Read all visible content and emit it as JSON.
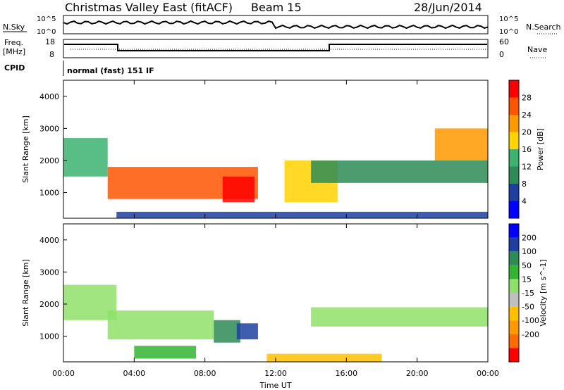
{
  "header": {
    "title": "Christmas Valley East (fitACF)",
    "beam": "Beam 15",
    "date": "28/Jun/2014"
  },
  "panels": {
    "nsky": {
      "left_label": "N.Sky",
      "left_ticks": [
        "10^5",
        "10^0"
      ],
      "right_ticks": [
        "10^5",
        "10^0"
      ],
      "right_label": "N.Search"
    },
    "freq": {
      "left_label_1": "Freq.",
      "left_label_2": "[MHz]",
      "left_ticks": [
        "18",
        "8"
      ],
      "right_ticks": [
        "60",
        "0"
      ],
      "right_label": "Nave"
    },
    "cpid": {
      "label": "CPID",
      "mode": "normal (fast) 151 IF"
    }
  },
  "colors": {
    "power": [
      "#0000ff",
      "#1f3fa0",
      "#2e8b57",
      "#3cb371",
      "#ffd200",
      "#ff9900",
      "#ff5500",
      "#ff0000"
    ],
    "velocity": [
      "#ff0000",
      "#ff6a00",
      "#ff9900",
      "#ffc000",
      "#c0c0c0",
      "#8fe06a",
      "#33b533",
      "#2e8b57",
      "#1f3fa0",
      "#0000ff"
    ]
  },
  "chart_data": [
    {
      "type": "heatmap",
      "name": "power",
      "ylabel": "Slant Range [km]",
      "yticks": [
        "1000",
        "2000",
        "3000",
        "4000"
      ],
      "ylim": [
        200,
        4500
      ],
      "colorbar_label": "Power [dB]",
      "colorbar_ticks": [
        "4",
        "8",
        "12",
        "16",
        "20",
        "24",
        "28"
      ],
      "colorbar_range": [
        0,
        32
      ],
      "features": [
        {
          "t0": 0.0,
          "t1": 2.5,
          "r0": 1500,
          "r1": 2700,
          "value": 14
        },
        {
          "t0": 2.5,
          "t1": 11.0,
          "r0": 800,
          "r1": 1800,
          "value": 24
        },
        {
          "t0": 9.0,
          "t1": 10.8,
          "r0": 700,
          "r1": 1500,
          "value": 30
        },
        {
          "t0": 12.5,
          "t1": 15.5,
          "r0": 700,
          "r1": 2000,
          "value": 16
        },
        {
          "t0": 14.0,
          "t1": 24.0,
          "r0": 1300,
          "r1": 2000,
          "value": 8
        },
        {
          "t0": 21.0,
          "t1": 24.0,
          "r0": 2000,
          "r1": 3000,
          "value": 20
        },
        {
          "t0": 3.0,
          "t1": 24.0,
          "r0": 200,
          "r1": 400,
          "value": 6
        }
      ]
    },
    {
      "type": "heatmap",
      "name": "velocity",
      "ylabel": "Slant Range [km]",
      "yticks": [
        "1000",
        "2000",
        "3000",
        "4000"
      ],
      "ylim": [
        200,
        4500
      ],
      "colorbar_label": "Velocity [m s^-1]",
      "colorbar_ticks": [
        "200",
        "100",
        "50",
        "15",
        "-15",
        "-50",
        "-100",
        "-200"
      ],
      "features": [
        {
          "t0": 0.0,
          "t1": 3.0,
          "r0": 1500,
          "r1": 2600,
          "value": 0
        },
        {
          "t0": 2.5,
          "t1": 8.5,
          "r0": 900,
          "r1": 1800,
          "value": 0
        },
        {
          "t0": 8.5,
          "t1": 10.0,
          "r0": 800,
          "r1": 1500,
          "value": 60
        },
        {
          "t0": 9.8,
          "t1": 11.0,
          "r0": 900,
          "r1": 1400,
          "value": 120
        },
        {
          "t0": 4.0,
          "t1": 7.5,
          "r0": 300,
          "r1": 700,
          "value": 40
        },
        {
          "t0": 14.0,
          "t1": 24.0,
          "r0": 1300,
          "r1": 1900,
          "value": 0
        },
        {
          "t0": 11.5,
          "t1": 18.0,
          "r0": 200,
          "r1": 450,
          "value": -60
        }
      ]
    }
  ],
  "xaxis": {
    "label": "Time UT",
    "ticks": [
      "00:00",
      "04:00",
      "08:00",
      "12:00",
      "16:00",
      "20:00",
      "00:00"
    ],
    "range_hours": [
      0,
      24
    ]
  }
}
